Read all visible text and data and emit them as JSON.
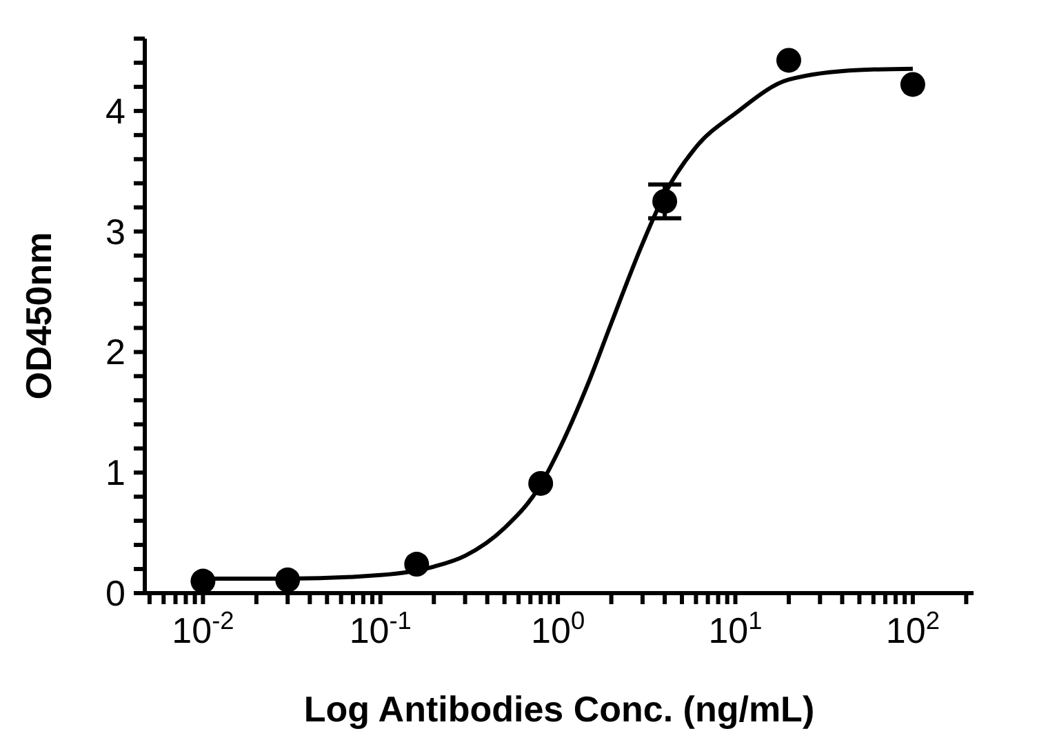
{
  "chart_data": {
    "type": "scatter",
    "xlabel": "Log Antibodies Conc. (ng/mL)",
    "ylabel": "OD450nm",
    "log": "x",
    "grid": false,
    "legend": false,
    "marker": "circle",
    "xlim": [
      0.0047,
      220
    ],
    "ylim": [
      0,
      4.6
    ],
    "xticks": [
      {
        "value": 0.005,
        "label": null
      },
      {
        "value": 0.006,
        "label": null
      },
      {
        "value": 0.007,
        "label": null
      },
      {
        "value": 0.008,
        "label": null
      },
      {
        "value": 0.009,
        "label": null
      },
      {
        "value": 0.01,
        "label": "10$^{-2}$"
      },
      {
        "value": 0.02,
        "label": null
      },
      {
        "value": 0.03,
        "label": null
      },
      {
        "value": 0.04,
        "label": null
      },
      {
        "value": 0.05,
        "label": null
      },
      {
        "value": 0.06,
        "label": null
      },
      {
        "value": 0.07,
        "label": null
      },
      {
        "value": 0.08,
        "label": null
      },
      {
        "value": 0.09,
        "label": null
      },
      {
        "value": 0.1,
        "label": "10$^{-1}$"
      },
      {
        "value": 0.2,
        "label": null
      },
      {
        "value": 0.3,
        "label": null
      },
      {
        "value": 0.4,
        "label": null
      },
      {
        "value": 0.5,
        "label": null
      },
      {
        "value": 0.6,
        "label": null
      },
      {
        "value": 0.7,
        "label": null
      },
      {
        "value": 0.8,
        "label": null
      },
      {
        "value": 0.9,
        "label": null
      },
      {
        "value": 1,
        "label": "10$^{0}$"
      },
      {
        "value": 2,
        "label": null
      },
      {
        "value": 3,
        "label": null
      },
      {
        "value": 4,
        "label": null
      },
      {
        "value": 5,
        "label": null
      },
      {
        "value": 6,
        "label": null
      },
      {
        "value": 7,
        "label": null
      },
      {
        "value": 8,
        "label": null
      },
      {
        "value": 9,
        "label": null
      },
      {
        "value": 10,
        "label": "10$^{1}$"
      },
      {
        "value": 20,
        "label": null
      },
      {
        "value": 30,
        "label": null
      },
      {
        "value": 40,
        "label": null
      },
      {
        "value": 50,
        "label": null
      },
      {
        "value": 60,
        "label": null
      },
      {
        "value": 70,
        "label": null
      },
      {
        "value": 80,
        "label": null
      },
      {
        "value": 90,
        "label": null
      },
      {
        "value": 100,
        "label": "10$^{2}$"
      },
      {
        "value": 200,
        "label": null
      }
    ],
    "yticks": [
      0,
      {
        "value": 0.2,
        "label": null
      },
      {
        "value": 0.4,
        "label": null
      },
      {
        "value": 0.6,
        "label": null
      },
      {
        "value": 0.8,
        "label": null
      },
      1,
      {
        "value": 1.2,
        "label": null
      },
      {
        "value": 1.4,
        "label": null
      },
      {
        "value": 1.6,
        "label": null
      },
      {
        "value": 1.8,
        "label": null
      },
      2,
      {
        "value": 2.2,
        "label": null
      },
      {
        "value": 2.4,
        "label": null
      },
      {
        "value": 2.6,
        "label": null
      },
      {
        "value": 2.8,
        "label": null
      },
      3,
      {
        "value": 3.2,
        "label": null
      },
      {
        "value": 3.4,
        "label": null
      },
      {
        "value": 3.6,
        "label": null
      },
      {
        "value": 3.8,
        "label": null
      },
      4,
      {
        "value": 4.2,
        "label": null
      },
      {
        "value": 4.4,
        "label": null
      },
      {
        "value": 4.6,
        "label": null
      }
    ],
    "series": [
      {
        "type": "scatter",
        "color": "#000000",
        "x": [
          0.01,
          0.03,
          0.16,
          0.8,
          4,
          20,
          100
        ],
        "values": [
          0.1,
          0.11,
          0.24,
          0.91,
          3.25,
          4.42,
          4.22
        ],
        "errors": [
          null,
          null,
          null,
          null,
          0.14,
          null,
          null
        ]
      },
      {
        "type": "line",
        "color": "#000000",
        "marker": "none",
        "line_style": "solid",
        "x": [
          0.01,
          0.03,
          0.1,
          0.2,
          0.3,
          0.5,
          0.8,
          1,
          1.5,
          2,
          3,
          4,
          6,
          10,
          20,
          50,
          100
        ],
        "values": [
          0.12,
          0.12,
          0.15,
          0.22,
          0.31,
          0.54,
          0.9,
          1.17,
          1.76,
          2.24,
          2.9,
          3.31,
          3.7,
          3.98,
          4.26,
          4.34,
          4.35
        ]
      }
    ]
  }
}
